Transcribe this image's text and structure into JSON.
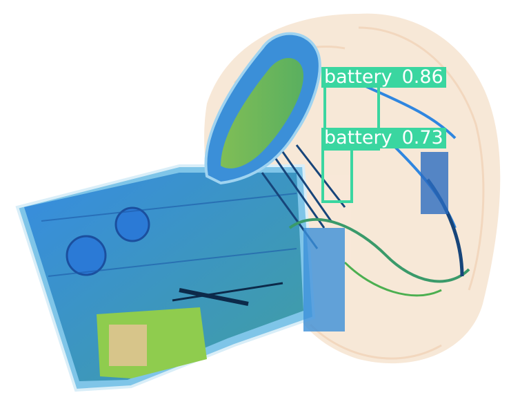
{
  "detections": [
    {
      "label": "battery",
      "confidence": "0.86"
    },
    {
      "label": "battery",
      "confidence": "0.73"
    }
  ],
  "colors": {
    "box": "#3ad6a0",
    "label_bg": "#3ad6a0",
    "label_text": "#ffffff",
    "xray_metal": "#2f7fd8",
    "xray_mid": "#7cc243",
    "xray_organic": "#e9c39a"
  }
}
